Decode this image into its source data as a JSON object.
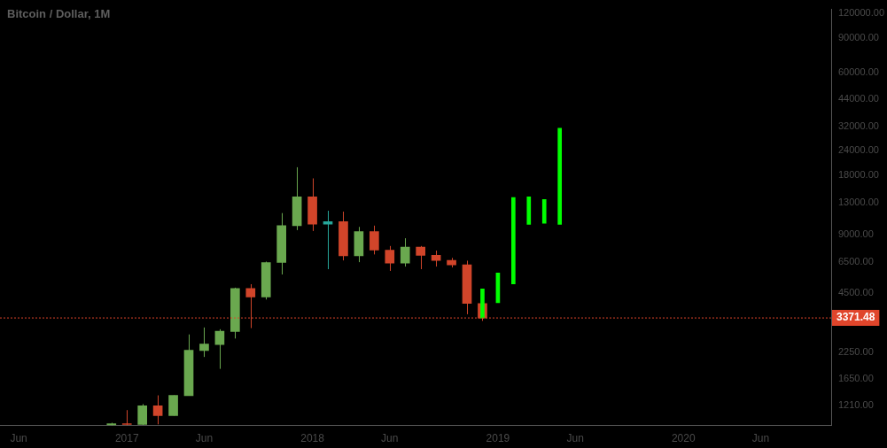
{
  "chart_data": {
    "type": "candlestick",
    "title": "Bitcoin / Dollar, 1M",
    "log": "y",
    "grid": false,
    "legend": false,
    "xlim": [
      "2016-04-25",
      "2020-10-18"
    ],
    "xticks": [
      {
        "value": "2016-06",
        "label": "Jun"
      },
      {
        "value": "2017-01",
        "label": "2017"
      },
      {
        "value": "2017-06",
        "label": "Jun"
      },
      {
        "value": "2018-01",
        "label": "2018"
      },
      {
        "value": "2018-06",
        "label": "Jun"
      },
      {
        "value": "2019-01",
        "label": "2019"
      },
      {
        "value": "2019-06",
        "label": "Jun"
      },
      {
        "value": "2020-01",
        "label": "2020"
      },
      {
        "value": "2020-06",
        "label": "Jun"
      }
    ],
    "ylim": [
      954,
      126000
    ],
    "yticks": [
      {
        "value": 1210,
        "label": "1210.00"
      },
      {
        "value": 1650,
        "label": "1650.00"
      },
      {
        "value": 2250,
        "label": "2250.00"
      },
      {
        "value": 4500,
        "label": "4500.00"
      },
      {
        "value": 6500,
        "label": "6500.00"
      },
      {
        "value": 9000,
        "label": "9000.00"
      },
      {
        "value": 13000,
        "label": "13000.00"
      },
      {
        "value": 18000,
        "label": "18000.00"
      },
      {
        "value": 24000,
        "label": "24000.00"
      },
      {
        "value": 32000,
        "label": "32000.00"
      },
      {
        "value": 44000,
        "label": "44000.00"
      },
      {
        "value": 60000,
        "label": "60000.00"
      },
      {
        "value": 90000,
        "label": "90000.00"
      },
      {
        "value": 120000,
        "label": "120000.00"
      }
    ],
    "series": [
      {
        "x": [
          "2016-12",
          "2017-01",
          "2017-02",
          "2017-03",
          "2017-04",
          "2017-05",
          "2017-06",
          "2017-07",
          "2017-08",
          "2017-09",
          "2017-10",
          "2017-11",
          "2017-12",
          "2018-01",
          "2018-02",
          "2018-03",
          "2018-04",
          "2018-05",
          "2018-06",
          "2018-07",
          "2018-08",
          "2018-09",
          "2018-10",
          "2018-11",
          "2018-12"
        ],
        "ohlc": [
          [
            958,
            985,
            956,
            975
          ],
          [
            975,
            1143,
            956,
            965
          ],
          [
            967,
            1227,
            960,
            1203
          ],
          [
            1203,
            1359,
            967,
            1071
          ],
          [
            1071,
            1359,
            1071,
            1359
          ],
          [
            1353,
            2778,
            1353,
            2306
          ],
          [
            2298,
            3014,
            2133,
            2484
          ],
          [
            2466,
            2953,
            1855,
            2885
          ],
          [
            2873,
            4810,
            2648,
            4763
          ],
          [
            4763,
            5010,
            2992,
            4316
          ],
          [
            4316,
            6530,
            4185,
            6460
          ],
          [
            6460,
            11540,
            5616,
            9960
          ],
          [
            9960,
            19760,
            9450,
            13950
          ],
          [
            13950,
            17340,
            9350,
            10140
          ],
          [
            10140,
            11860,
            5975,
            10430
          ],
          [
            10430,
            11740,
            6620,
            6990
          ],
          [
            6990,
            9810,
            6486,
            9295
          ],
          [
            9295,
            9960,
            7103,
            7475
          ],
          [
            7475,
            7845,
            5856,
            6418
          ],
          [
            6418,
            8590,
            6160,
            7740
          ],
          [
            7740,
            7845,
            5975,
            7033
          ],
          [
            7033,
            7430,
            6160,
            6620
          ],
          [
            6620,
            6820,
            6096,
            6290
          ],
          [
            6290,
            6600,
            3521,
            3994
          ],
          [
            3994,
            3994,
            3258,
            3371.48
          ]
        ],
        "colors": [
          "#6aa84f",
          "#d1452a",
          "#6aa84f",
          "#d1452a",
          "#6aa84f",
          "#6aa84f",
          "#6aa84f",
          "#6aa84f",
          "#6aa84f",
          "#d1452a",
          "#6aa84f",
          "#6aa84f",
          "#6aa84f",
          "#d1452a",
          "#26a69a",
          "#d1452a",
          "#6aa84f",
          "#d1452a",
          "#d1452a",
          "#6aa84f",
          "#d1452a",
          "#d1452a",
          "#d1452a",
          "#d1452a",
          "#d1452a"
        ]
      },
      {
        "type": "bar",
        "color": "#00ff00",
        "x": [
          "2018-12",
          "2019-01",
          "2019-02",
          "2019-03",
          "2019-04",
          "2019-05"
        ],
        "base": [
          3371.48,
          4033,
          5025,
          10120,
          10230,
          10100
        ],
        "values": [
          1373.52,
          1687,
          8815,
          3830,
          3320,
          21130
        ]
      }
    ],
    "ref_lines": [
      {
        "axis": "y",
        "value": 3371.48,
        "label": "3371.48",
        "color": "#e0452b",
        "line_style": "dotted"
      }
    ]
  }
}
